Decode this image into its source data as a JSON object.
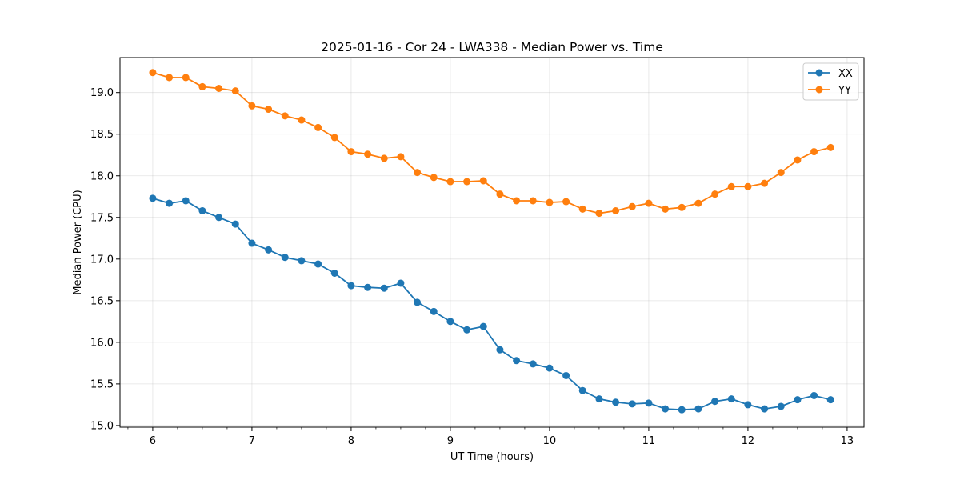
{
  "chart_data": {
    "type": "line",
    "title": "2025-01-16 - Cor 24 - LWA338 - Median Power vs. Time",
    "xlabel": "UT Time (hours)",
    "ylabel": "Median Power (CPU)",
    "xlim": [
      5.67,
      13.17
    ],
    "ylim": [
      14.98,
      19.42
    ],
    "xticks": [
      6,
      7,
      8,
      9,
      10,
      11,
      12,
      13
    ],
    "xminor_step": 0.25,
    "yticks": [
      15.0,
      15.5,
      16.0,
      16.5,
      17.0,
      17.5,
      18.0,
      18.5,
      19.0
    ],
    "grid": true,
    "legend_position": "top-right",
    "x": [
      6.0,
      6.1667,
      6.3333,
      6.5,
      6.6667,
      6.8333,
      7.0,
      7.1667,
      7.3333,
      7.5,
      7.6667,
      7.8333,
      8.0,
      8.1667,
      8.3333,
      8.5,
      8.6667,
      8.8333,
      9.0,
      9.1667,
      9.3333,
      9.5,
      9.6667,
      9.8333,
      10.0,
      10.1667,
      10.3333,
      10.5,
      10.6667,
      10.8333,
      11.0,
      11.1667,
      11.3333,
      11.5,
      11.6667,
      11.8333,
      12.0,
      12.1667,
      12.3333,
      12.5,
      12.6667,
      12.8333
    ],
    "series": [
      {
        "name": "XX",
        "color": "#1f77b4",
        "values": [
          17.73,
          17.67,
          17.7,
          17.58,
          17.5,
          17.42,
          17.19,
          17.11,
          17.02,
          16.98,
          16.94,
          16.83,
          16.68,
          16.66,
          16.65,
          16.71,
          16.48,
          16.37,
          16.25,
          16.15,
          16.19,
          15.91,
          15.78,
          15.74,
          15.69,
          15.6,
          15.42,
          15.32,
          15.28,
          15.26,
          15.27,
          15.2,
          15.19,
          15.2,
          15.29,
          15.32,
          15.25,
          15.2,
          15.23,
          15.31,
          15.36,
          15.31
        ]
      },
      {
        "name": "YY",
        "color": "#ff7f0e",
        "values": [
          19.24,
          19.18,
          19.18,
          19.07,
          19.05,
          19.02,
          18.84,
          18.8,
          18.72,
          18.67,
          18.58,
          18.46,
          18.29,
          18.26,
          18.21,
          18.23,
          18.04,
          17.98,
          17.93,
          17.93,
          17.94,
          17.78,
          17.7,
          17.7,
          17.68,
          17.69,
          17.6,
          17.55,
          17.58,
          17.63,
          17.67,
          17.6,
          17.62,
          17.67,
          17.78,
          17.87,
          17.87,
          17.91,
          18.04,
          18.19,
          18.29,
          18.34
        ]
      }
    ]
  }
}
